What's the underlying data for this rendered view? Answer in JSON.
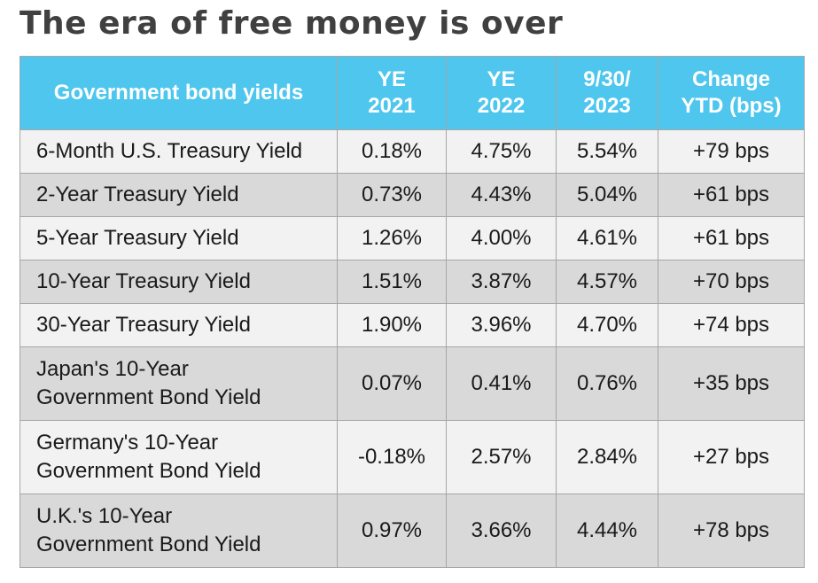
{
  "title": "The era of free money is over",
  "chart_data": {
    "type": "table",
    "columns": [
      {
        "lines": [
          "Government bond yields"
        ]
      },
      {
        "lines": [
          "YE",
          "2021"
        ]
      },
      {
        "lines": [
          "YE",
          "2022"
        ]
      },
      {
        "lines": [
          "9/30/",
          "2023"
        ]
      },
      {
        "lines": [
          "Change",
          "YTD (bps)"
        ]
      }
    ],
    "rows": [
      {
        "label": [
          "6-Month U.S. Treasury Yield"
        ],
        "ye2021": "0.18%",
        "ye2022": "4.75%",
        "sep2023": "5.54%",
        "change": "+79 bps"
      },
      {
        "label": [
          "2-Year Treasury Yield"
        ],
        "ye2021": "0.73%",
        "ye2022": "4.43%",
        "sep2023": "5.04%",
        "change": "+61 bps"
      },
      {
        "label": [
          "5-Year Treasury Yield"
        ],
        "ye2021": "1.26%",
        "ye2022": "4.00%",
        "sep2023": "4.61%",
        "change": "+61 bps"
      },
      {
        "label": [
          "10-Year Treasury Yield"
        ],
        "ye2021": "1.51%",
        "ye2022": "3.87%",
        "sep2023": "4.57%",
        "change": "+70 bps"
      },
      {
        "label": [
          "30-Year Treasury Yield"
        ],
        "ye2021": "1.90%",
        "ye2022": "3.96%",
        "sep2023": "4.70%",
        "change": "+74 bps"
      },
      {
        "label": [
          "Japan's 10-Year",
          "Government Bond Yield"
        ],
        "ye2021": "0.07%",
        "ye2022": "0.41%",
        "sep2023": "0.76%",
        "change": "+35 bps"
      },
      {
        "label": [
          "Germany's 10-Year",
          "Government Bond Yield"
        ],
        "ye2021": "-0.18%",
        "ye2022": "2.57%",
        "sep2023": "2.84%",
        "change": "+27 bps"
      },
      {
        "label": [
          "U.K.'s 10-Year",
          "Government Bond Yield"
        ],
        "ye2021": "0.97%",
        "ye2022": "3.66%",
        "sep2023": "4.44%",
        "change": "+78 bps"
      }
    ]
  }
}
